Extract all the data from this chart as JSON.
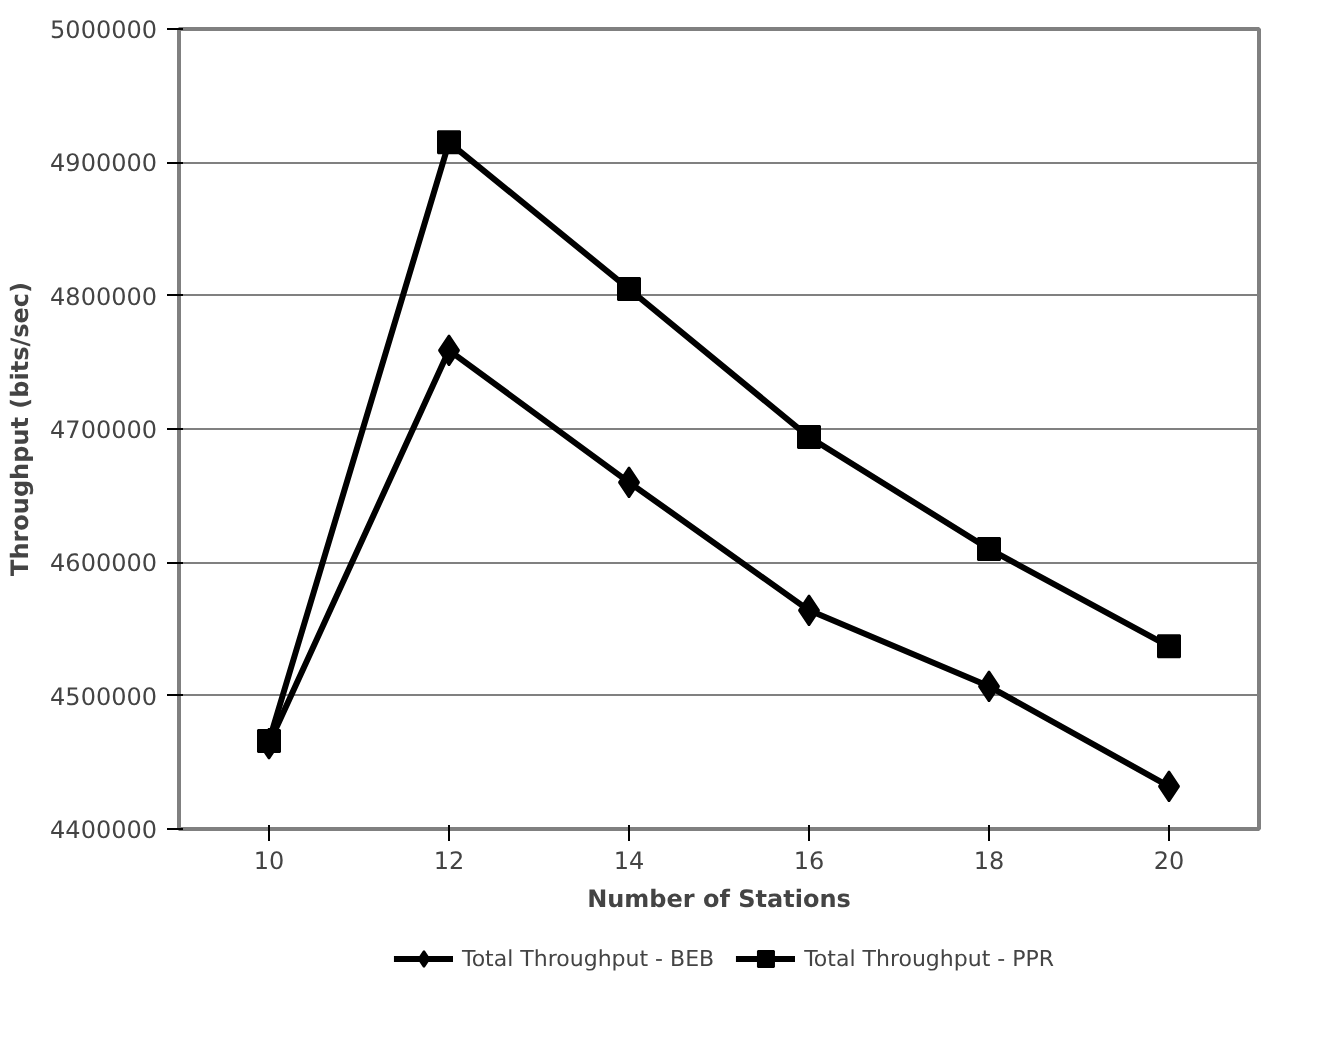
{
  "chart_data": {
    "type": "line",
    "xlabel": "Number of Stations",
    "ylabel": "Throughput (bits/sec)",
    "categories": [
      "10",
      "12",
      "14",
      "16",
      "18",
      "20"
    ],
    "ylim": [
      4400000,
      5000000
    ],
    "yticks": [
      4400000,
      4500000,
      4600000,
      4700000,
      4800000,
      4900000,
      5000000
    ],
    "grid": "y",
    "legend": "bottom",
    "series": [
      {
        "name": "Total Throughput - BEB",
        "color": "#000000",
        "marker": "diamond",
        "values": [
          4464000,
          4759000,
          4660000,
          4564000,
          4507000,
          4432000
        ]
      },
      {
        "name": "Total Throughput - PPR",
        "color": "#000000",
        "marker": "square",
        "values": [
          4466000,
          4915000,
          4805000,
          4694000,
          4610000,
          4537000
        ]
      }
    ]
  }
}
